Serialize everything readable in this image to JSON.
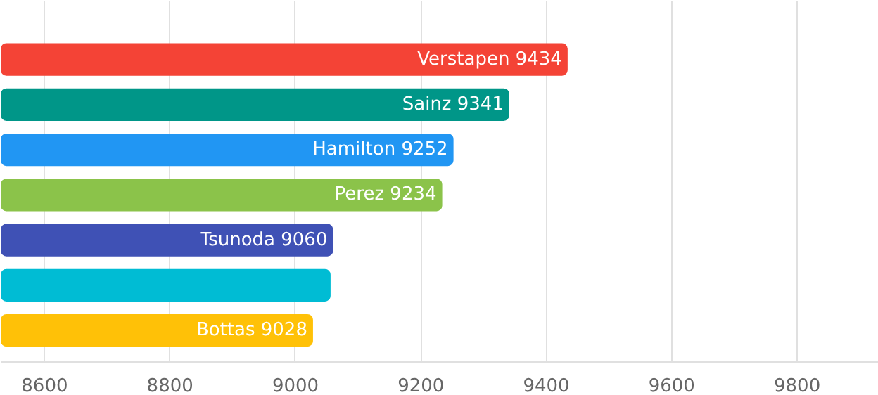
{
  "chart_data": {
    "type": "bar",
    "orientation": "horizontal",
    "categories": [
      "Verstapen",
      "Sainz",
      "Hamilton",
      "Perez",
      "Tsunoda",
      null,
      "Bottas"
    ],
    "values": [
      9434,
      9341,
      9252,
      9234,
      9060,
      9056,
      9028
    ],
    "colors": [
      "#f44336",
      "#009688",
      "#2196f3",
      "#8bc34a",
      "#3f51b5",
      "#00bcd4",
      "#ffc107"
    ],
    "value_labels": [
      "9434",
      "9341",
      "9252",
      "9234",
      "9060",
      null,
      "9028"
    ],
    "xlim": [
      8530,
      9930
    ],
    "xticks": [
      8600,
      8800,
      9000,
      9200,
      9400,
      9600,
      9800
    ],
    "grid": "x"
  }
}
